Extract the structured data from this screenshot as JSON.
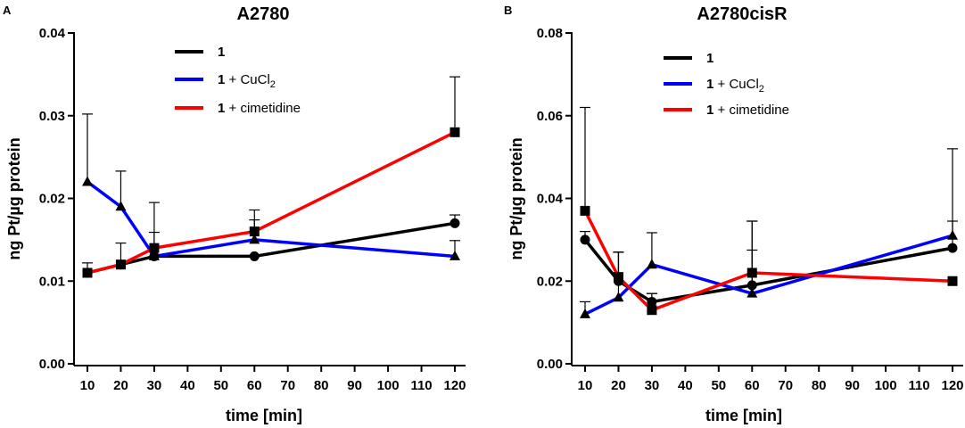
{
  "chart_data": [
    {
      "type": "line",
      "panel_label": "A",
      "title": "A2780",
      "xlabel": "time [min]",
      "ylabel": "ng Pt/µg protein",
      "xlim": [
        5,
        125
      ],
      "ylim": [
        0,
        0.04
      ],
      "x_ticks": [
        10,
        20,
        30,
        40,
        50,
        60,
        70,
        80,
        90,
        100,
        110,
        120
      ],
      "x_tick_labels": [
        "10",
        "20",
        "30",
        "40",
        "50",
        "60",
        "70",
        "80",
        "90",
        "100",
        "110",
        "120"
      ],
      "y_ticks": [
        0,
        0.01,
        0.02,
        0.03,
        0.04
      ],
      "y_tick_labels": [
        "0.00",
        "0.01",
        "0.02",
        "0.03",
        "0.04"
      ],
      "x": [
        10,
        20,
        30,
        60,
        120
      ],
      "legend": {
        "position": "top-center"
      },
      "series": [
        {
          "name_main": "1",
          "name_suffix": "",
          "name_sub": "",
          "color": "#000000",
          "marker": "circle",
          "values": [
            0.011,
            0.012,
            0.013,
            0.013,
            0.017
          ],
          "errors": [
            0.0,
            0.0,
            0.0,
            0.0,
            0.001
          ]
        },
        {
          "name_main": "1",
          "name_suffix": " + CuCl",
          "name_sub": "2",
          "color": "#0000ff",
          "marker": "triangle",
          "values": [
            0.022,
            0.019,
            0.013,
            0.015,
            0.013
          ],
          "errors": [
            0.0082,
            0.0043,
            0.0029,
            0.0024,
            0.0019
          ]
        },
        {
          "name_main": "1",
          "name_suffix": " + cimetidine",
          "name_sub": "",
          "color": "#ff0000",
          "marker": "square",
          "values": [
            0.011,
            0.012,
            0.014,
            0.016,
            0.028
          ],
          "errors": [
            0.0012,
            0.0026,
            0.0055,
            0.0026,
            0.0067
          ]
        }
      ]
    },
    {
      "type": "line",
      "panel_label": "B",
      "title": "A2780cisR",
      "xlabel": "time [min]",
      "ylabel": "ng Pt/µg protein",
      "xlim": [
        5,
        125
      ],
      "ylim": [
        0,
        0.08
      ],
      "x_ticks": [
        10,
        20,
        30,
        40,
        50,
        60,
        70,
        80,
        90,
        100,
        110,
        120
      ],
      "x_tick_labels": [
        "10",
        "20",
        "30",
        "40",
        "50",
        "60",
        "70",
        "80",
        "90",
        "100",
        "110",
        "120"
      ],
      "y_ticks": [
        0,
        0.02,
        0.04,
        0.06,
        0.08
      ],
      "y_tick_labels": [
        "0.00",
        "0.02",
        "0.04",
        "0.06",
        "0.08"
      ],
      "x": [
        10,
        20,
        30,
        60,
        120
      ],
      "legend": {
        "position": "top-center"
      },
      "series": [
        {
          "name_main": "1",
          "name_suffix": "",
          "name_sub": "",
          "color": "#000000",
          "marker": "circle",
          "values": [
            0.03,
            0.02,
            0.015,
            0.019,
            0.028
          ],
          "errors": [
            0.002,
            0.007,
            0.002,
            0.0085,
            0.0065
          ]
        },
        {
          "name_main": "1",
          "name_suffix": " + CuCl",
          "name_sub": "2",
          "color": "#0000ff",
          "marker": "triangle",
          "values": [
            0.012,
            0.016,
            0.024,
            0.017,
            0.031
          ],
          "errors": [
            0.003,
            0.011,
            0.0077,
            0.0175,
            0.021
          ]
        },
        {
          "name_main": "1",
          "name_suffix": " + cimetidine",
          "name_sub": "",
          "color": "#ff0000",
          "marker": "square",
          "values": [
            0.037,
            0.021,
            0.013,
            0.022,
            0.02
          ],
          "errors": [
            0.025,
            0.006,
            0.004,
            0.0125,
            0.0
          ]
        }
      ]
    }
  ]
}
